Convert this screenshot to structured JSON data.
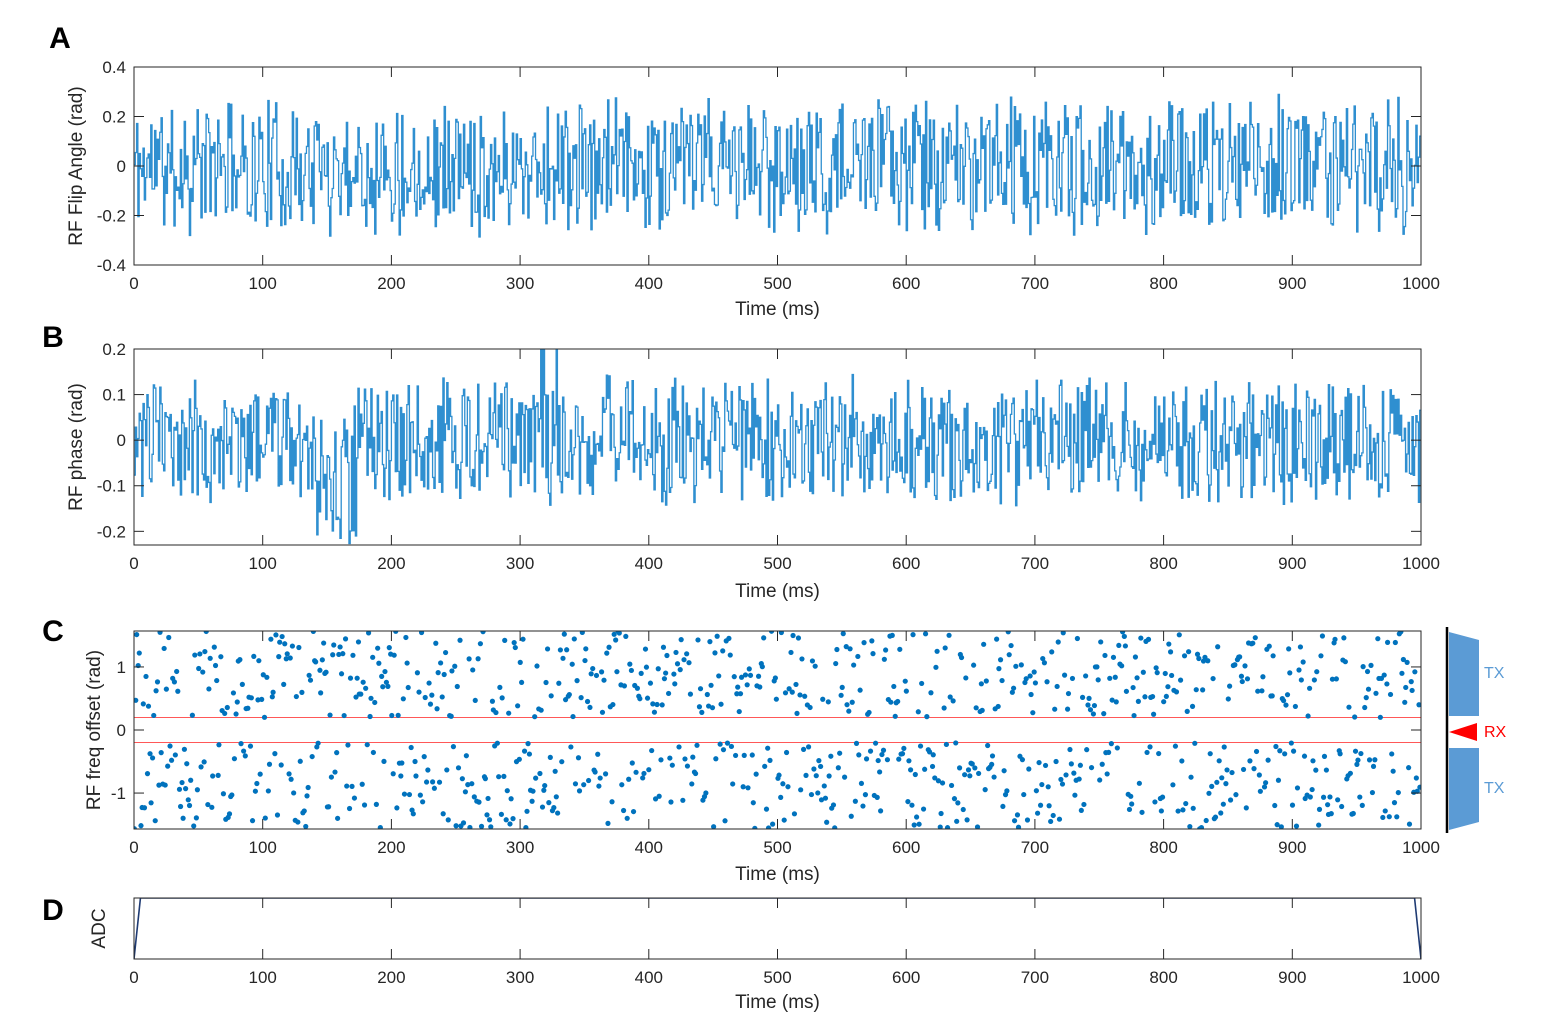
{
  "colors": {
    "series": "#0072BD",
    "axis": "#262626",
    "threshold": "#FF4040",
    "tx_shape": "#5B9BD5",
    "rx_shape": "#FF0000",
    "adc_line": "#1F3B73"
  },
  "chart_data": [
    {
      "id": "A",
      "panel_label": "A",
      "type": "line",
      "style": "stairs",
      "title": "",
      "xlabel": "Time (ms)",
      "ylabel": "RF Flip Angle (rad)",
      "xlim": [
        0,
        1000
      ],
      "ylim": [
        -0.4,
        0.4
      ],
      "xticks": [
        0,
        100,
        200,
        300,
        400,
        500,
        600,
        700,
        800,
        900,
        1000
      ],
      "xtick_labels": [
        "0",
        "100",
        "200",
        "300",
        "400",
        "500",
        "600",
        "700",
        "800",
        "900",
        "1000"
      ],
      "yticks": [
        -0.4,
        -0.2,
        0,
        0.2,
        0.4
      ],
      "ytick_labels": [
        "-0.4",
        "-0.2",
        "0",
        "0.2",
        "0.4"
      ],
      "series": [
        {
          "name": "RF Flip Angle",
          "n_samples": 1000,
          "x_start": 0,
          "x_step": 1,
          "amplitude": 0.3,
          "seed": 11
        }
      ]
    },
    {
      "id": "B",
      "panel_label": "B",
      "type": "line",
      "style": "stairs",
      "title": "",
      "xlabel": "Time (ms)",
      "ylabel": "RF phase (rad)",
      "xlim": [
        0,
        1000
      ],
      "ylim": [
        -0.23,
        0.2
      ],
      "xticks": [
        0,
        100,
        200,
        300,
        400,
        500,
        600,
        700,
        800,
        900,
        1000
      ],
      "xtick_labels": [
        "0",
        "100",
        "200",
        "300",
        "400",
        "500",
        "600",
        "700",
        "800",
        "900",
        "1000"
      ],
      "yticks": [
        -0.2,
        -0.1,
        0,
        0.1,
        0.2
      ],
      "ytick_labels": [
        "-0.2",
        "-0.1",
        "0",
        "0.1",
        "0.2"
      ],
      "series": [
        {
          "name": "RF phase",
          "n_samples": 1000,
          "x_start": 0,
          "x_step": 1,
          "amplitude": 0.15,
          "seed": 23
        }
      ]
    },
    {
      "id": "C",
      "panel_label": "C",
      "type": "scatter",
      "title": "",
      "xlabel": "Time (ms)",
      "ylabel": "RF freq offset (rad)",
      "xlim": [
        0,
        1000
      ],
      "ylim": [
        -1.57,
        1.57
      ],
      "xticks": [
        0,
        100,
        200,
        300,
        400,
        500,
        600,
        700,
        800,
        900,
        1000
      ],
      "xtick_labels": [
        "0",
        "100",
        "200",
        "300",
        "400",
        "500",
        "600",
        "700",
        "800",
        "900",
        "1000"
      ],
      "yticks": [
        -1,
        0,
        1
      ],
      "ytick_labels": [
        "-1",
        "0",
        "1"
      ],
      "thresholds": [
        0.2,
        -0.2
      ],
      "series": [
        {
          "name": "RF freq offset",
          "n_points": 1000,
          "x_start": 0,
          "x_step": 1,
          "range": [
            0.2,
            1.57
          ],
          "seed": 37
        }
      ],
      "side_labels": {
        "upper": "TX",
        "middle": "RX",
        "lower": "TX"
      }
    },
    {
      "id": "D",
      "panel_label": "D",
      "type": "line",
      "title": "",
      "xlabel": "Time (ms)",
      "ylabel": "ADC",
      "xlim": [
        0,
        1000
      ],
      "ylim": [
        0,
        1
      ],
      "xticks": [
        0,
        100,
        200,
        300,
        400,
        500,
        600,
        700,
        800,
        900,
        1000
      ],
      "xtick_labels": [
        "0",
        "100",
        "200",
        "300",
        "400",
        "500",
        "600",
        "700",
        "800",
        "900",
        "1000"
      ],
      "yticks": [],
      "ytick_labels": [],
      "series": [
        {
          "name": "ADC",
          "x": [
            0,
            5,
            995,
            1000
          ],
          "y": [
            0,
            1,
            1,
            0
          ]
        }
      ]
    }
  ]
}
